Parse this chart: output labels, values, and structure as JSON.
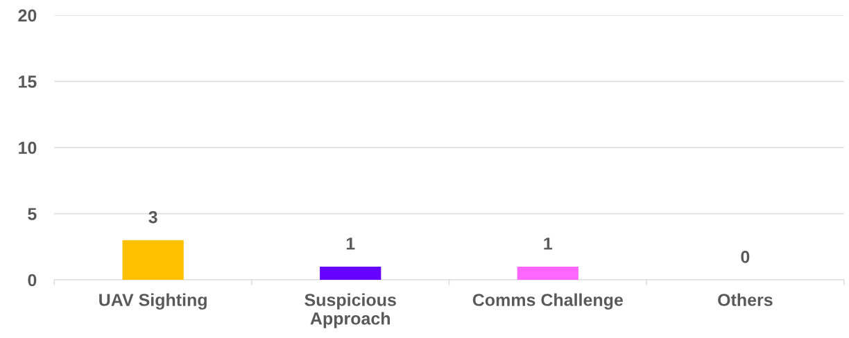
{
  "chart_data": {
    "type": "bar",
    "categories": [
      "UAV Sighting",
      "Suspicious\nApproach",
      "Comms Challenge",
      "Others"
    ],
    "values": [
      3,
      1,
      1,
      0
    ],
    "colors": [
      "#ffc000",
      "#6600ff",
      "#ff66ff",
      "#a5a5a5"
    ],
    "ylim": [
      0,
      20
    ],
    "yticks": [
      0,
      5,
      10,
      15,
      20
    ],
    "grid": "y",
    "data_labels": true
  }
}
